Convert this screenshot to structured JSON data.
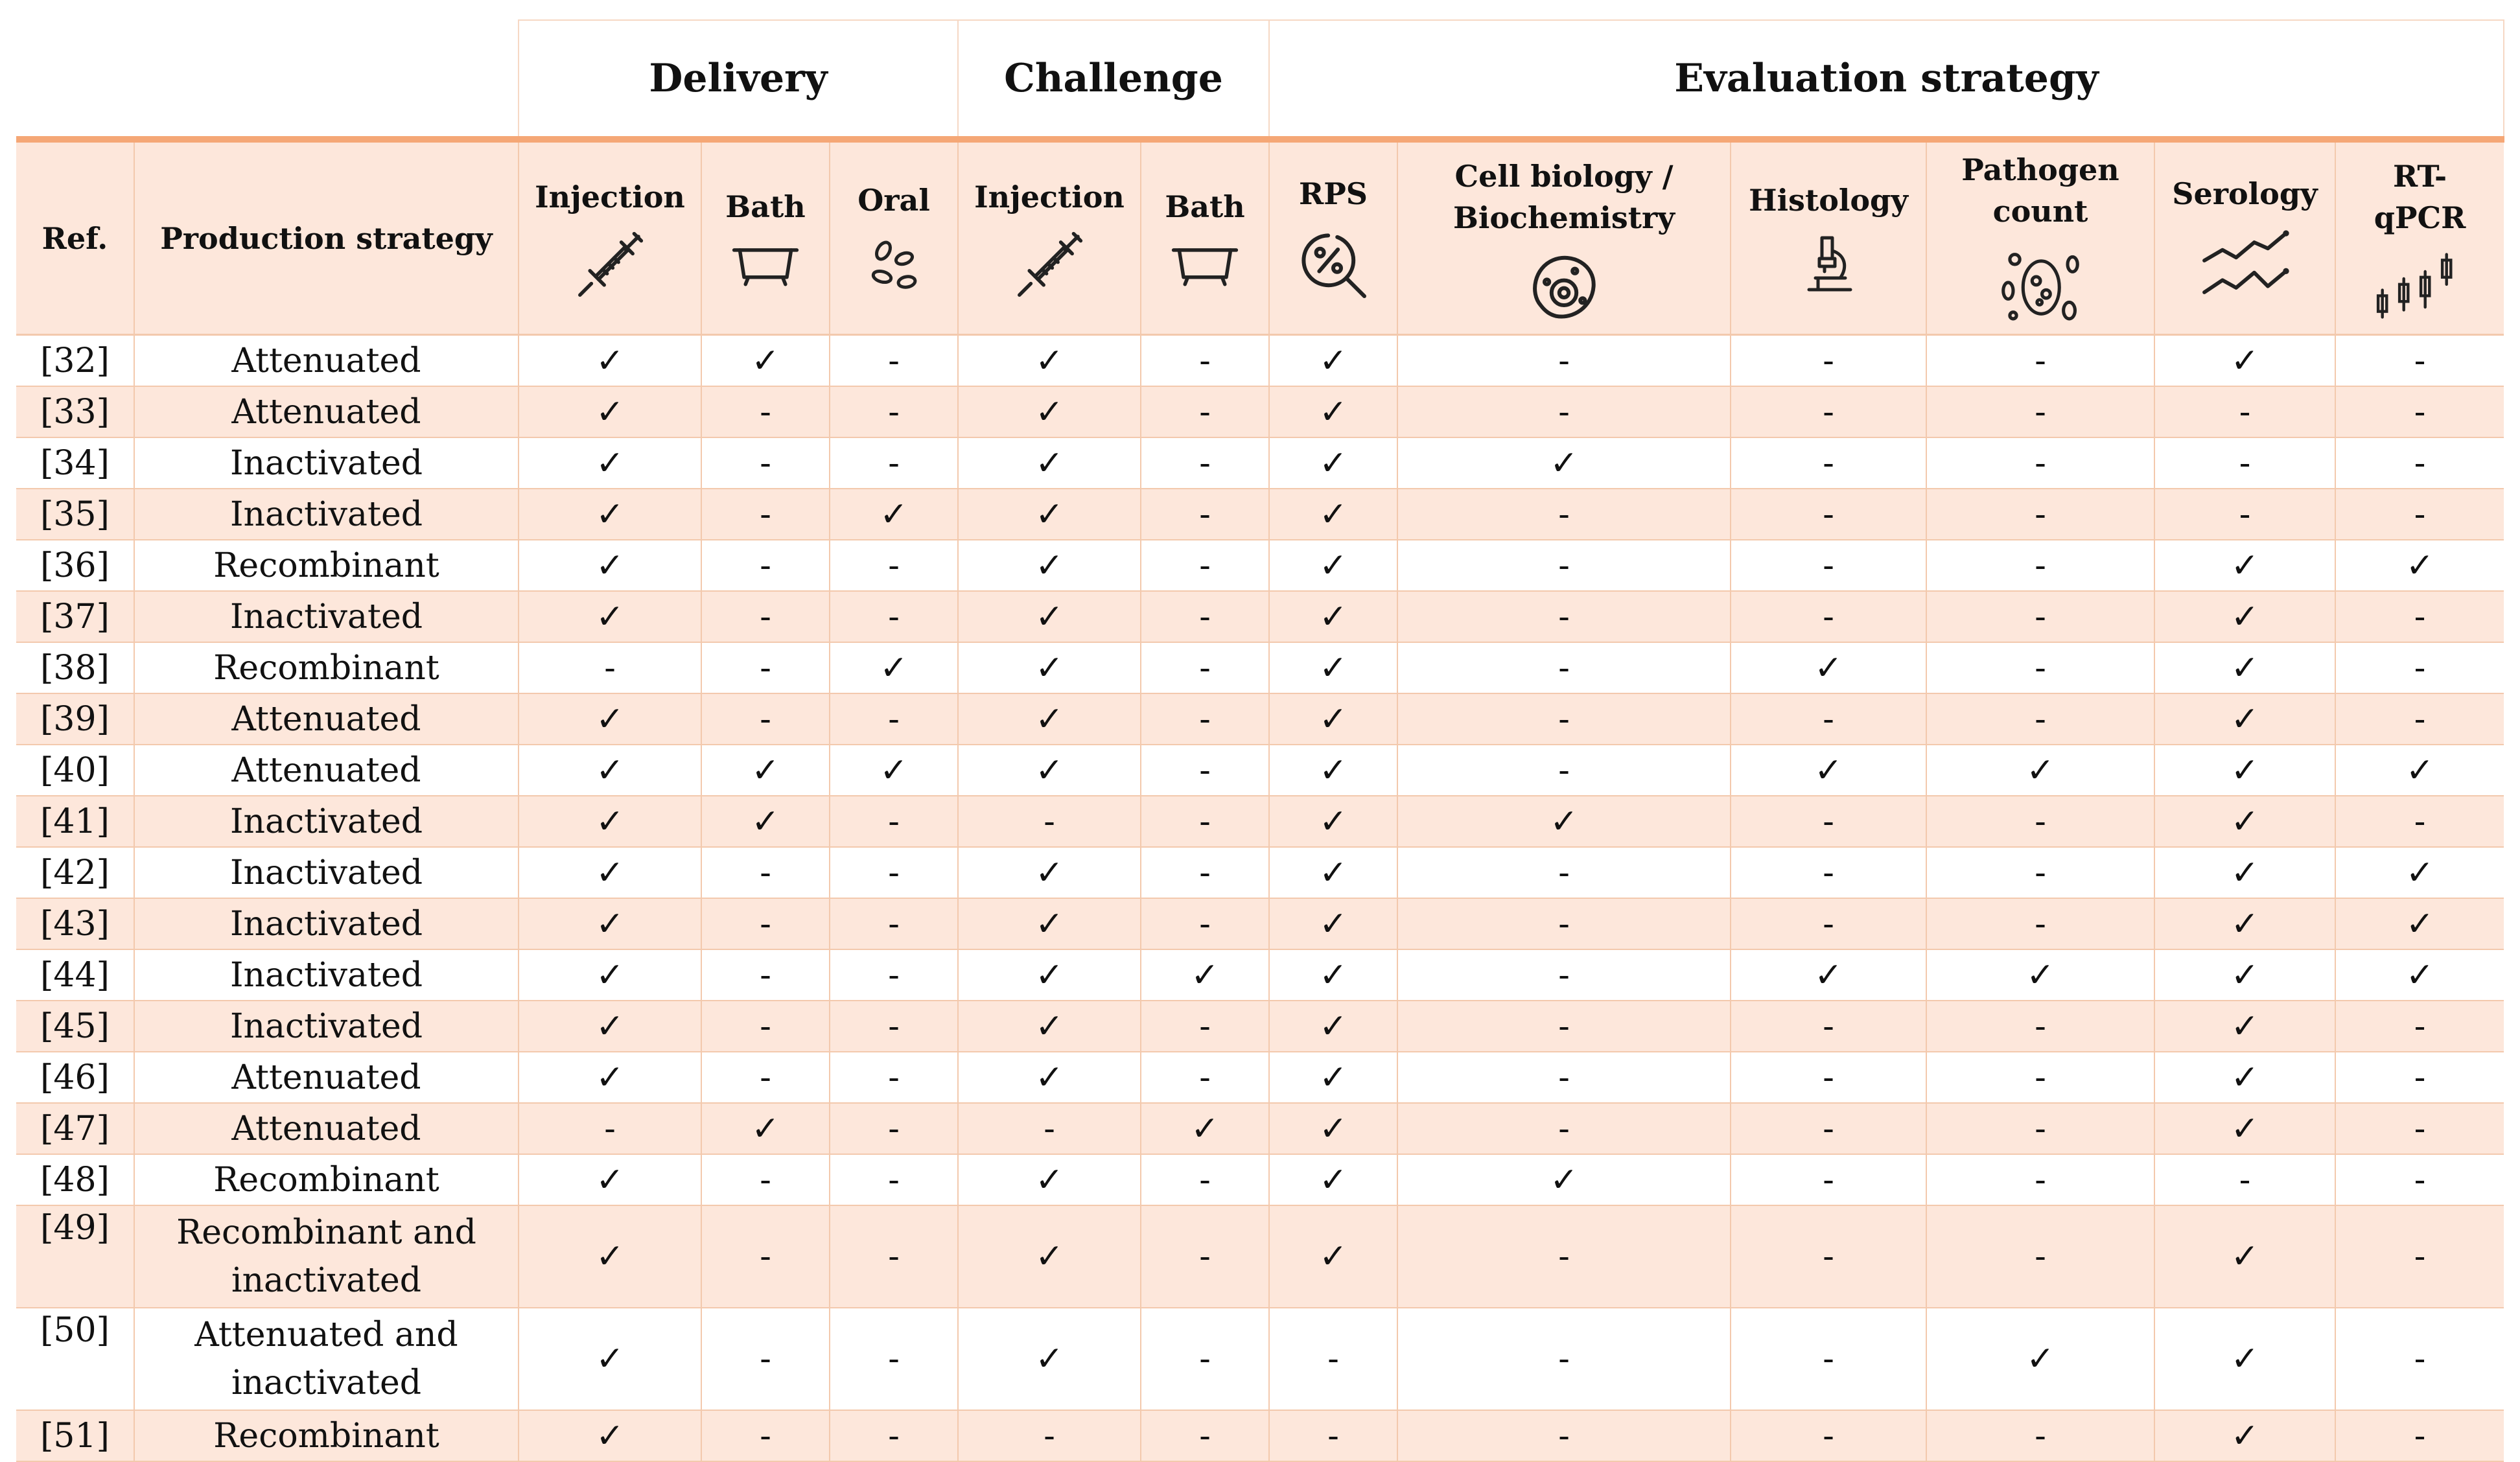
{
  "groups": {
    "delivery": "Delivery",
    "challenge": "Challenge",
    "evaluation": "Evaluation strategy"
  },
  "headers": {
    "ref": "Ref.",
    "production": "Production strategy",
    "del_injection": "Injection",
    "del_bath": "Bath",
    "del_oral": "Oral",
    "ch_injection": "Injection",
    "ch_bath": "Bath",
    "rps": "RPS",
    "cell_line1": "Cell biology /",
    "cell_line2": "Biochemistry",
    "histology": "Histology",
    "pathogen_line1": "Pathogen",
    "pathogen_line2": "count",
    "serology": "Serology",
    "rtqpcr_line1": "RT-",
    "rtqpcr_line2": "qPCR"
  },
  "icons": {
    "del_injection": "syringe-icon",
    "del_bath": "bathtub-icon",
    "del_oral": "pellets-icon",
    "ch_injection": "syringe-icon",
    "ch_bath": "bathtub-icon",
    "rps": "percent-magnifier-icon",
    "cell": "cell-icon",
    "histology": "microscope-icon",
    "pathogen": "bacteria-icon",
    "serology": "line-graph-icon",
    "rtqpcr": "candlestick-icon"
  },
  "colors": {
    "accent": "#f5a776",
    "shade": "#fde7db",
    "border": "#f3c9ad"
  },
  "rows": [
    {
      "ref": "[32]",
      "prod": "Attenuated",
      "cells": [
        "✓",
        "✓",
        "-",
        "✓",
        "-",
        "✓",
        "-",
        "-",
        "-",
        "✓",
        "-"
      ]
    },
    {
      "ref": "[33]",
      "prod": "Attenuated",
      "cells": [
        "✓",
        "-",
        "-",
        "✓",
        "-",
        "✓",
        "-",
        "-",
        "-",
        "-",
        "-"
      ]
    },
    {
      "ref": "[34]",
      "prod": "Inactivated",
      "cells": [
        "✓",
        "-",
        "-",
        "✓",
        "-",
        "✓",
        "✓",
        "-",
        "-",
        "-",
        "-"
      ]
    },
    {
      "ref": "[35]",
      "prod": "Inactivated",
      "cells": [
        "✓",
        "-",
        "✓",
        "✓",
        "-",
        "✓",
        "-",
        "-",
        "-",
        "-",
        "-"
      ]
    },
    {
      "ref": "[36]",
      "prod": "Recombinant",
      "cells": [
        "✓",
        "-",
        "-",
        "✓",
        "-",
        "✓",
        "-",
        "-",
        "-",
        "✓",
        "✓"
      ]
    },
    {
      "ref": "[37]",
      "prod": "Inactivated",
      "cells": [
        "✓",
        "-",
        "-",
        "✓",
        "-",
        "✓",
        "-",
        "-",
        "-",
        "✓",
        "-"
      ]
    },
    {
      "ref": "[38]",
      "prod": "Recombinant",
      "cells": [
        "-",
        "-",
        "✓",
        "✓",
        "-",
        "✓",
        "-",
        "✓",
        "-",
        "✓",
        "-"
      ]
    },
    {
      "ref": "[39]",
      "prod": "Attenuated",
      "cells": [
        "✓",
        "-",
        "-",
        "✓",
        "-",
        "✓",
        "-",
        "-",
        "-",
        "✓",
        "-"
      ]
    },
    {
      "ref": "[40]",
      "prod": "Attenuated",
      "cells": [
        "✓",
        "✓",
        "✓",
        "✓",
        "-",
        "✓",
        "-",
        "✓",
        "✓",
        "✓",
        "✓"
      ]
    },
    {
      "ref": "[41]",
      "prod": "Inactivated",
      "cells": [
        "✓",
        "✓",
        "-",
        "-",
        "-",
        "✓",
        "✓",
        "-",
        "-",
        "✓",
        "-"
      ]
    },
    {
      "ref": "[42]",
      "prod": "Inactivated",
      "cells": [
        "✓",
        "-",
        "-",
        "✓",
        "-",
        "✓",
        "-",
        "-",
        "-",
        "✓",
        "✓"
      ]
    },
    {
      "ref": "[43]",
      "prod": "Inactivated",
      "cells": [
        "✓",
        "-",
        "-",
        "✓",
        "-",
        "✓",
        "-",
        "-",
        "-",
        "✓",
        "✓"
      ]
    },
    {
      "ref": "[44]",
      "prod": "Inactivated",
      "cells": [
        "✓",
        "-",
        "-",
        "✓",
        "✓",
        "✓",
        "-",
        "✓",
        "✓",
        "✓",
        "✓"
      ]
    },
    {
      "ref": "[45]",
      "prod": "Inactivated",
      "cells": [
        "✓",
        "-",
        "-",
        "✓",
        "-",
        "✓",
        "-",
        "-",
        "-",
        "✓",
        "-"
      ]
    },
    {
      "ref": "[46]",
      "prod": "Attenuated",
      "cells": [
        "✓",
        "-",
        "-",
        "✓",
        "-",
        "✓",
        "-",
        "-",
        "-",
        "✓",
        "-"
      ]
    },
    {
      "ref": "[47]",
      "prod": "Attenuated",
      "cells": [
        "-",
        "✓",
        "-",
        "-",
        "✓",
        "✓",
        "-",
        "-",
        "-",
        "✓",
        "-"
      ]
    },
    {
      "ref": "[48]",
      "prod": "Recombinant",
      "cells": [
        "✓",
        "-",
        "-",
        "✓",
        "-",
        "✓",
        "✓",
        "-",
        "-",
        "-",
        "-"
      ]
    },
    {
      "ref": "[49]",
      "prod_line1": "Recombinant and",
      "prod_line2": "inactivated",
      "cells": [
        "✓",
        "-",
        "-",
        "✓",
        "-",
        "✓",
        "-",
        "-",
        "-",
        "✓",
        "-"
      ]
    },
    {
      "ref": "[50]",
      "prod_line1": "Attenuated and",
      "prod_line2": "inactivated",
      "cells": [
        "✓",
        "-",
        "-",
        "✓",
        "-",
        "-",
        "-",
        "-",
        "✓",
        "✓",
        "-"
      ]
    },
    {
      "ref": "[51]",
      "prod": "Recombinant",
      "cells": [
        "✓",
        "-",
        "-",
        "-",
        "-",
        "-",
        "-",
        "-",
        "-",
        "✓",
        "-"
      ]
    }
  ]
}
